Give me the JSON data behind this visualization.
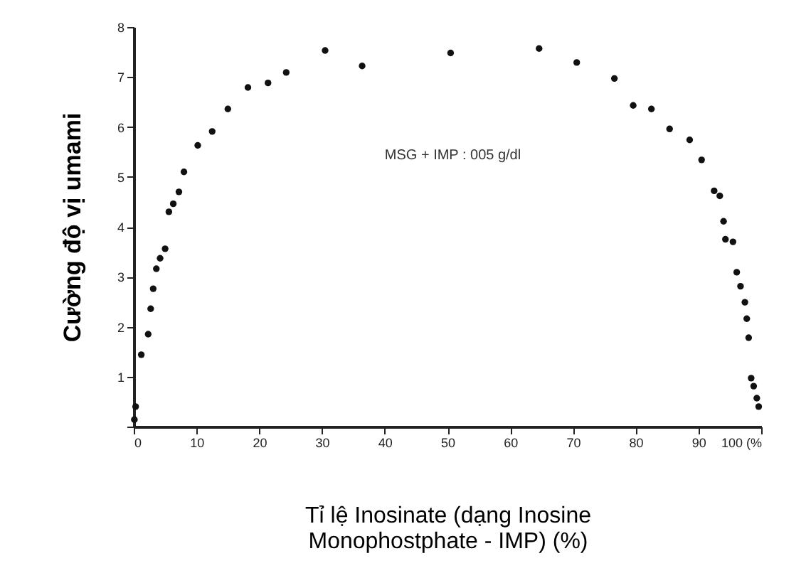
{
  "chart_data": {
    "type": "scatter",
    "xlabel": "Tỉ lệ Inosinate (dạng Inosine Monophostphate - IMP) (%)",
    "ylabel": "Cường độ vị umami",
    "annotations": [
      "MSG + IMP : 005 g/dl"
    ],
    "x": [
      0.1,
      0.3,
      1.2,
      2.3,
      2.7,
      3.1,
      3.6,
      4.2,
      5.0,
      5.6,
      6.3,
      7.2,
      8.0,
      10.2,
      12.5,
      15.0,
      18.2,
      21.4,
      24.3,
      30.5,
      36.4,
      50.5,
      64.6,
      70.6,
      76.6,
      79.6,
      82.5,
      85.4,
      88.6,
      90.5,
      92.5,
      93.4,
      94.0,
      94.3,
      95.5,
      96.1,
      96.7,
      97.4,
      97.7,
      98.0,
      98.4,
      98.8,
      99.3,
      99.6
    ],
    "series": [
      {
        "color": "#111111",
        "values": [
          0.14,
          0.4,
          1.44,
          1.85,
          2.36,
          2.76,
          3.16,
          3.37,
          3.56,
          4.3,
          4.46,
          4.7,
          5.1,
          5.63,
          5.91,
          6.36,
          6.79,
          6.88,
          7.09,
          7.53,
          7.22,
          7.48,
          7.57,
          7.29,
          6.97,
          6.43,
          6.36,
          5.96,
          5.74,
          5.34,
          4.72,
          4.62,
          4.11,
          3.75,
          3.7,
          3.09,
          2.81,
          2.49,
          2.16,
          1.78,
          0.97,
          0.81,
          0.57,
          0.4
        ]
      }
    ],
    "xlim": [
      0,
      100
    ],
    "ylim": [
      0,
      8
    ],
    "xticks": [
      0,
      10,
      20,
      30,
      40,
      50,
      60,
      70,
      80,
      90,
      {
        "value": 100,
        "label": "100 (%"
      }
    ],
    "yticks": [
      {
        "value": 0,
        "label": null
      },
      1,
      2,
      3,
      4,
      5,
      6,
      7,
      8
    ],
    "grid": false,
    "legend": false,
    "marker": "circle"
  }
}
